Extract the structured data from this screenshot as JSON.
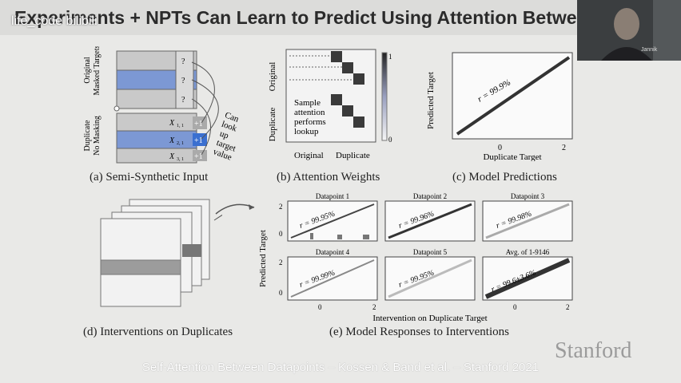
{
  "slide": {
    "title": "Experiments + NPTs Can Learn to Predict Using Attention Between Datap...",
    "watermark": "life_code  bilibili",
    "webcam_name": "Jannik",
    "footer": "Self-Attention Between Datapoints – Kossen & Band et al. – Stanford 2021",
    "logo": "Stanford"
  },
  "panels": {
    "a": {
      "caption": "(a) Semi-Synthetic Input",
      "label_original": "Original",
      "label_masked": "Masked Targets",
      "label_duplicate": "Duplicate",
      "label_nomask": "No Masking",
      "q": "?",
      "x1": "X",
      "x1sub": "1, 1",
      "x2": "X",
      "x2sub": "2, 1",
      "x3": "X",
      "x3sub": "3, 1",
      "plus": "+1",
      "annot1": "Can",
      "annot2": "look",
      "annot3": "up",
      "annot4": "target",
      "annot5": "value"
    },
    "b": {
      "caption": "(b) Attention Weights",
      "ylabel_original": "Original",
      "ylabel_duplicate": "Duplicate",
      "xlabel_original": "Original",
      "xlabel_duplicate": "Duplicate",
      "cbar_top": "1",
      "cbar_bottom": "0",
      "annot1": "Sample",
      "annot2": "attention",
      "annot3": "performs",
      "annot4": "lookup"
    },
    "c": {
      "caption": "(c) Model Predictions",
      "xlabel": "Duplicate Target",
      "ylabel": "Predicted Target",
      "r": "r = 99.9%",
      "tick0": "0",
      "tick2": "2"
    },
    "d": {
      "caption": "(d) Interventions on Duplicates"
    },
    "e": {
      "caption": "(e) Model Responses to Interventions",
      "xlabel": "Intervention on Duplicate Target",
      "ylabel": "Predicted Target",
      "subplots": [
        {
          "title": "Datapoint 1",
          "r": "r = 99.95%"
        },
        {
          "title": "Datapoint 2",
          "r": "r = 99.96%"
        },
        {
          "title": "Datapoint 3",
          "r": "r = 99.98%"
        },
        {
          "title": "Datapoint 4",
          "r": "r = 99.99%"
        },
        {
          "title": "Datapoint 5",
          "r": "r = 99.95%"
        },
        {
          "title": "Avg. of 1-9146",
          "r": "r = 99.6±3.6%"
        }
      ],
      "ytick2": "2",
      "ytick0": "0",
      "xtick0": "0",
      "xtick2": "2"
    }
  },
  "colors": {
    "blue_row": "#7c98d4",
    "blue_accent": "#3a6fd0",
    "dark_cell": "#3a3a3a",
    "line_gray": "#444444"
  }
}
